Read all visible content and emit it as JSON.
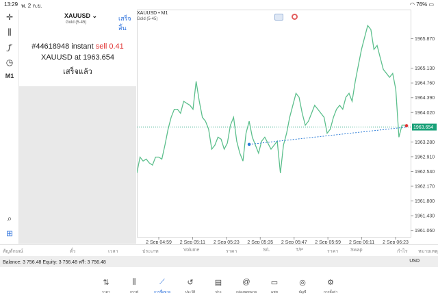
{
  "status_bar": {
    "time": "13:29",
    "date": "พ. 2 ก.ย.",
    "battery": "76%"
  },
  "panel": {
    "symbol": "XAUUSD",
    "symbol_sub": "Gold (5-45)",
    "done_label": "เสร็จสิ้น",
    "order_prefix": "#44618948 instant",
    "order_type_volume": "sell 0.41",
    "price_line": "XAUUSD at 1963.654",
    "status": "เสร็จแล้ว"
  },
  "chart": {
    "title": "XAUUSD • M1",
    "subtitle": "Gold (5-45)",
    "current_price": "1963.654",
    "colors": {
      "line": "#5cbf8c",
      "current": "#1aa179",
      "trade": "#2a7bd6"
    }
  },
  "chart_data": {
    "type": "line",
    "x_ticks": [
      "2 Sep 04:59",
      "2 Sep 05:11",
      "2 Sep 05:23",
      "2 Sep 05:35",
      "2 Sep 05:47",
      "2 Sep 05:59",
      "2 Sep 06:11",
      "2 Sep 06:23"
    ],
    "y_ticks": [
      1965.87,
      1965.13,
      1964.76,
      1964.39,
      1964.02,
      1963.28,
      1962.91,
      1962.54,
      1962.17,
      1961.8,
      1961.43,
      1961.06
    ],
    "y_range": [
      1960.9,
      1966.6
    ],
    "current_price": 1963.654,
    "trade_entry": 1963.22,
    "series": [
      {
        "values": [
          1962.5,
          1962.9,
          1962.8,
          1962.85,
          1962.75,
          1962.7,
          1962.9,
          1962.9,
          1962.85,
          1963.2,
          1963.6,
          1963.9,
          1964.1,
          1964.1,
          1964.0,
          1964.3,
          1964.25,
          1964.2,
          1964.1,
          1964.8,
          1964.3,
          1963.9,
          1963.8,
          1963.6,
          1963.1,
          1963.2,
          1963.4,
          1963.35,
          1963.1,
          1963.25,
          1963.7,
          1963.9,
          1963.3,
          1963.0,
          1962.8,
          1963.5,
          1963.8,
          1963.4,
          1963.2,
          1963.0,
          1963.3,
          1963.4,
          1963.25,
          1963.1,
          1963.2,
          1963.3,
          1962.5,
          1963.2,
          1963.5,
          1963.9,
          1964.2,
          1964.5,
          1964.4,
          1964.0,
          1963.7,
          1963.8,
          1964.0,
          1964.2,
          1964.1,
          1964.0,
          1963.9,
          1963.5,
          1963.6,
          1963.9,
          1964.1,
          1964.2,
          1964.1,
          1964.4,
          1964.5,
          1964.3,
          1964.8,
          1965.2,
          1965.6,
          1965.9,
          1966.2,
          1966.1,
          1965.6,
          1965.7,
          1965.4,
          1965.1,
          1965.0,
          1964.9,
          1965.0,
          1964.6,
          1963.4,
          1963.7,
          1963.7
        ]
      }
    ]
  },
  "columns": {
    "symbol": "สัญลักษณ์",
    "ticket": "ตั๋ว",
    "time": "เวลา",
    "type": "ประเภท",
    "volume": "Volume",
    "price": "ราคา",
    "sl": "S/L",
    "tp": "T/P",
    "price2": "ราคา",
    "swap": "Swap",
    "profit": "กำไร",
    "comment": "หมายเหตุ"
  },
  "balance": {
    "text": "Balance: 3 756.48 Equity: 3 756.48 ฟรี: 3 756.48",
    "currency": "USD"
  },
  "tabs": [
    {
      "label": "ราคา",
      "icon": "quotes-icon"
    },
    {
      "label": "กราฟ",
      "icon": "chart-icon"
    },
    {
      "label": "การซื้อขาย",
      "icon": "trade-icon"
    },
    {
      "label": "ประวัติ",
      "icon": "history-icon"
    },
    {
      "label": "ข่าว",
      "icon": "news-icon"
    },
    {
      "label": "กล่องจดหมาย",
      "icon": "mailbox-icon"
    },
    {
      "label": "แชท",
      "icon": "chat-icon"
    },
    {
      "label": "บัญชี",
      "icon": "account-icon"
    },
    {
      "label": "การตั้งค่า",
      "icon": "settings-icon"
    }
  ]
}
